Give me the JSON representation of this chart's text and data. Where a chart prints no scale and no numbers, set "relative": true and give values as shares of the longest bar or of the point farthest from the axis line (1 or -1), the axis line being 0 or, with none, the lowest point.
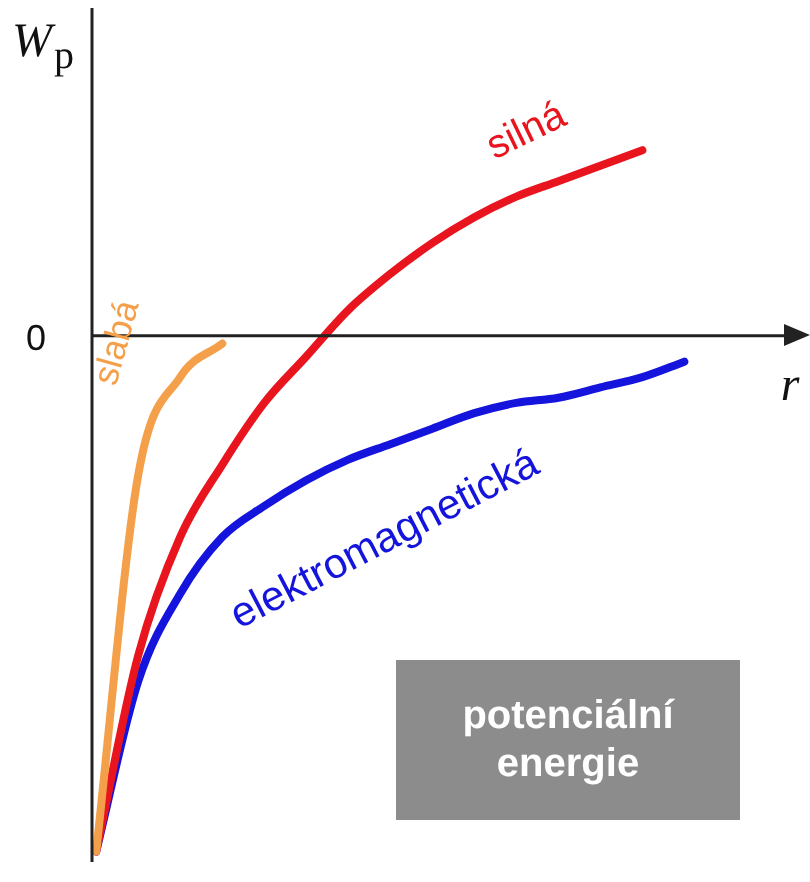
{
  "chart_data": {
    "type": "line",
    "relative": true,
    "xlabel": "r",
    "annotations": [
      "W$_{p}$",
      "0",
      "potenciální energie"
    ],
    "categories": [
      null,
      null,
      null,
      null,
      null,
      null,
      null,
      null,
      null,
      null,
      null,
      null,
      null,
      null,
      null
    ],
    "series": [
      {
        "name": "slabá",
        "color": "#f4a04a",
        "values": [
          -1,
          -0.27,
          -0.08,
          -0.015,
          null,
          null,
          null,
          null,
          null,
          null,
          null,
          null,
          null,
          null,
          null
        ]
      },
      {
        "name": "silná",
        "color": "#e8141e",
        "values": [
          -1,
          -0.62,
          -0.39,
          -0.25,
          -0.13,
          -0.04,
          0.05,
          0.12,
          0.18,
          0.23,
          0.27,
          0.3,
          0.33,
          0.36,
          null
        ]
      },
      {
        "name": "elektromagnetická",
        "color": "#1414dc",
        "values": [
          -1,
          -0.67,
          -0.5,
          -0.39,
          -0.33,
          -0.28,
          -0.24,
          -0.21,
          -0.18,
          -0.15,
          -0.13,
          -0.12,
          -0.1,
          -0.08,
          -0.05
        ]
      }
    ],
    "legend": false,
    "marker": "none",
    "line_style": "solid"
  }
}
